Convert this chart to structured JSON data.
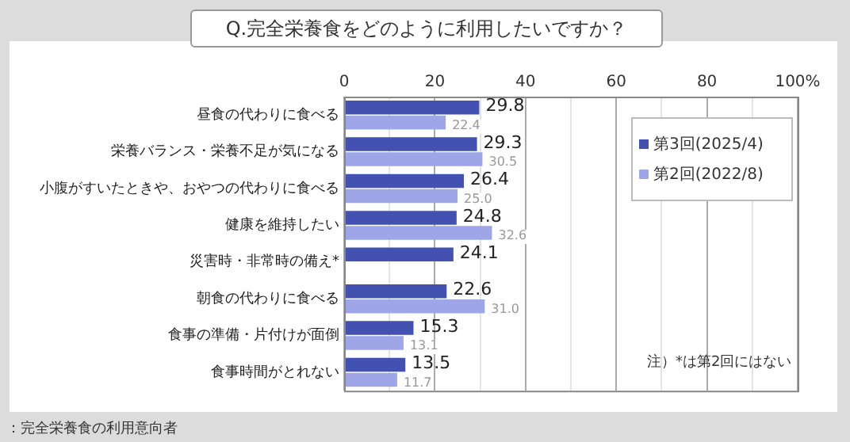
{
  "chart_data": {
    "type": "bar",
    "orientation": "horizontal",
    "title": "Q.完全栄養食をどのように利用したいですか？",
    "categories": [
      "昼食の代わりに食べる",
      "栄養バランス・栄養不足が気になる",
      "小腹がすいたときや、おやつの代わりに食べる",
      "健康を維持したい",
      "災害時・非常時の備え*",
      "朝食の代わりに食べる",
      "食事の準備・片付けが面倒",
      "食事時間がとれない"
    ],
    "series": [
      {
        "name": "第3回(2025/4)",
        "color": "#4352b0",
        "values": [
          29.8,
          29.3,
          26.4,
          24.8,
          24.1,
          22.6,
          15.3,
          13.5
        ],
        "value_labels": [
          "29.8",
          "29.3",
          "26.4",
          "24.8",
          "24.1",
          "22.6",
          "15.3",
          "13.5"
        ]
      },
      {
        "name": "第2回(2022/8)",
        "color": "#9ea6e8",
        "values": [
          22.4,
          30.5,
          25.0,
          32.6,
          null,
          31.0,
          13.1,
          11.7
        ],
        "value_labels": [
          "22.4",
          "30.5",
          "25.0",
          "32.6",
          null,
          "31.0",
          "13.1",
          "11.7"
        ]
      }
    ],
    "xlim": [
      0,
      100
    ],
    "xticks": [
      0,
      {
        "value": 10,
        "label": null
      },
      20,
      {
        "value": 30,
        "label": null
      },
      40,
      {
        "value": 50,
        "label": null
      },
      60,
      {
        "value": 70,
        "label": null
      },
      80,
      {
        "value": 90,
        "label": null
      },
      {
        "value": 100,
        "label": "100%"
      }
    ],
    "grid": "x",
    "legend": "top right",
    "annotations": [
      "注）*は第2回にはない",
      "：完全栄養食の利用意向者"
    ]
  }
}
